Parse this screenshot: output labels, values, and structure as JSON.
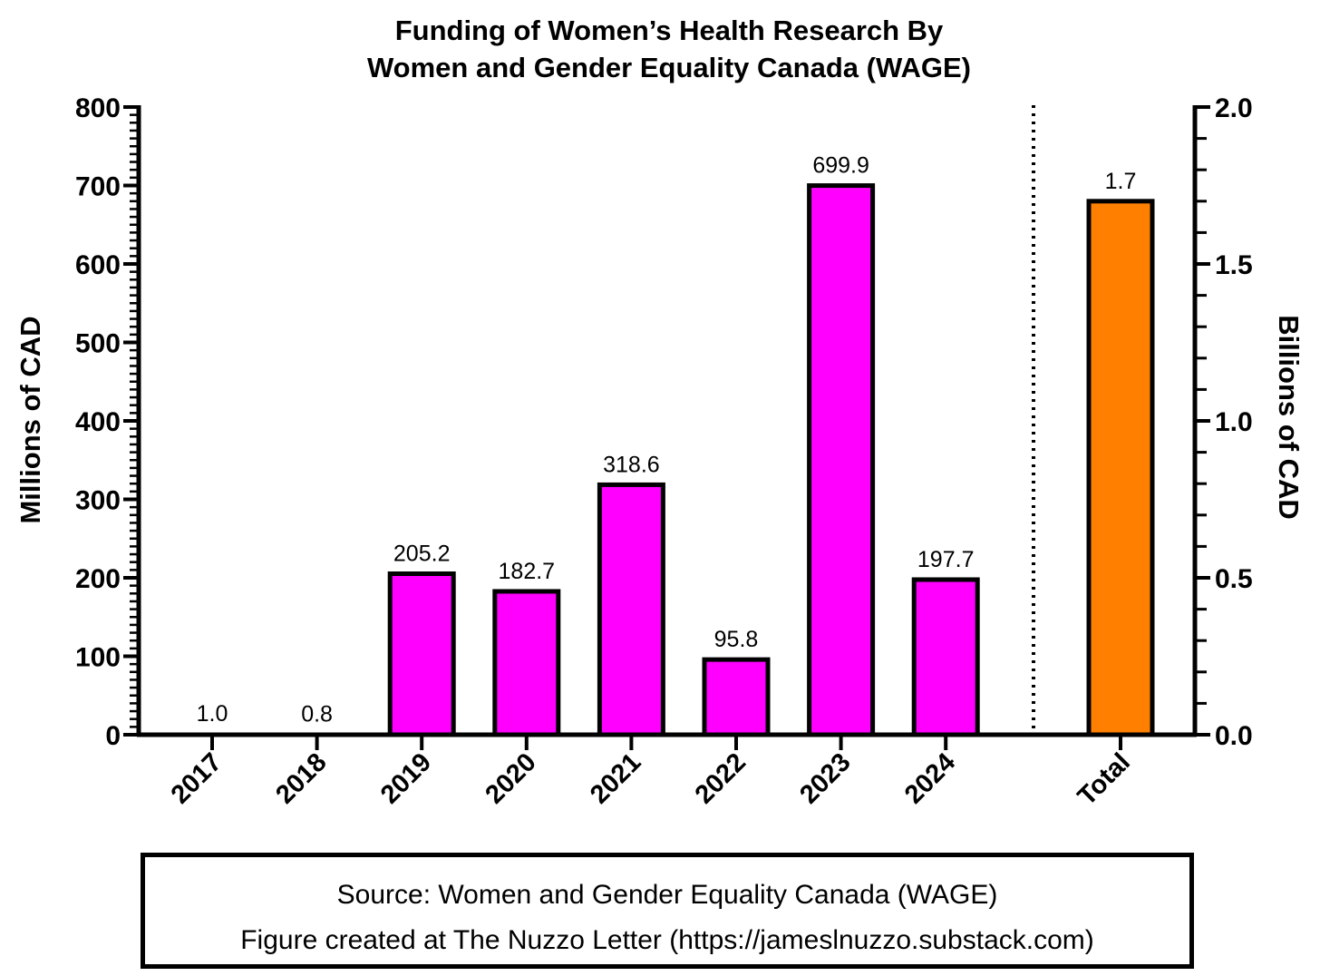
{
  "chart_data": {
    "type": "bar",
    "title": [
      "Funding of Women’s Health Research By",
      "Women and Gender Equality Canada (WAGE)"
    ],
    "ylabel": "Millions of CAD",
    "y2label": "Billions of CAD",
    "ylim": [
      0,
      800
    ],
    "y2lim": [
      0,
      2.0
    ],
    "yticks": [
      "0",
      "100",
      "200",
      "300",
      "400",
      "500",
      "600",
      "700",
      "800"
    ],
    "y2ticks": [
      "0.0",
      "0.5",
      "1.0",
      "1.5",
      "2.0"
    ],
    "categories": [
      "2017",
      "2018",
      "2019",
      "2020",
      "2021",
      "2022",
      "2023",
      "2024"
    ],
    "values": [
      1.0,
      0.8,
      205.2,
      182.7,
      318.6,
      95.8,
      699.9,
      197.7
    ],
    "value_labels": [
      "1.0",
      "0.8",
      "205.2",
      "182.7",
      "318.6",
      "95.8",
      "699.9",
      "197.7"
    ],
    "total": {
      "category": "Total",
      "value": 1.7,
      "value_label": "1.7",
      "axis": "right"
    },
    "colors": {
      "yearly_bars": "#ff00ff",
      "total_bar": "#ff8000",
      "outline": "#000000"
    },
    "grid": false,
    "legend": "none"
  },
  "footer": {
    "source": "Source: Women and Gender Equality Canada (WAGE)",
    "credit": "Figure created at The Nuzzo Letter (https://jameslnuzzo.substack.com)"
  }
}
